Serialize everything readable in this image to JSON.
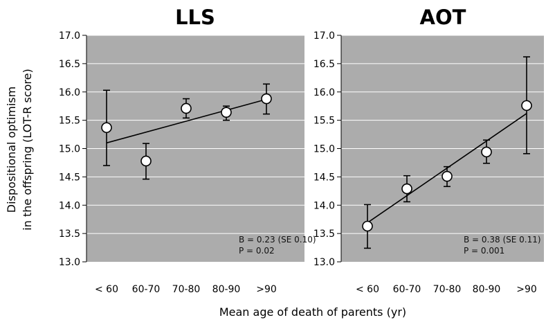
{
  "figure": {
    "ylabel_line1": "Dispositional optimism",
    "ylabel_line2": "in the offspring (LOT-R score)",
    "xlabel": "Mean age of death of parents (yr)"
  },
  "chart_data": [
    {
      "type": "scatter",
      "title": "LLS",
      "categories": [
        "< 60",
        "60-70",
        "70-80",
        "80-90",
        ">90"
      ],
      "values": [
        15.37,
        14.78,
        15.71,
        15.64,
        15.88
      ],
      "error_lower": [
        14.7,
        14.46,
        15.54,
        15.5,
        15.61
      ],
      "error_upper": [
        16.03,
        15.09,
        15.88,
        15.75,
        16.14
      ],
      "fit_line": {
        "start": 15.1,
        "end": 15.87
      },
      "ylim": [
        13.0,
        17.0
      ],
      "yticks": [
        "13.0",
        "13.5",
        "14.0",
        "14.5",
        "15.0",
        "15.5",
        "16.0",
        "16.5",
        "17.0"
      ],
      "stats_line1": "B = 0.23 (SE 0.10)",
      "stats_line2": "P = 0.02",
      "background_color": "#acacac",
      "gridline_color": "#ffffff",
      "marker_color": "#ffffff",
      "line_color": "#000000"
    },
    {
      "type": "scatter",
      "title": "AOT",
      "categories": [
        "< 60",
        "60-70",
        "70-80",
        "80-90",
        ">90"
      ],
      "values": [
        13.63,
        14.29,
        14.51,
        14.94,
        15.76
      ],
      "error_lower": [
        13.24,
        14.06,
        14.33,
        14.74,
        14.91
      ],
      "error_upper": [
        14.01,
        14.52,
        14.68,
        15.15,
        16.62
      ],
      "fit_line": {
        "start": 13.69,
        "end": 15.62
      },
      "ylim": [
        13.0,
        17.0
      ],
      "yticks": [
        "13.0",
        "13.5",
        "14.0",
        "14.5",
        "15.0",
        "15.5",
        "16.0",
        "16.5",
        "17.0"
      ],
      "stats_line1": "B = 0.38 (SE 0.11)",
      "stats_line2": "P = 0.001",
      "background_color": "#acacac",
      "gridline_color": "#ffffff",
      "marker_color": "#ffffff",
      "line_color": "#000000"
    }
  ]
}
